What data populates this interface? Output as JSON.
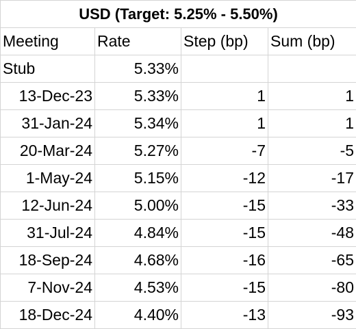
{
  "sheet": {
    "title": "USD (Target: 5.25% - 5.50%)",
    "headers": [
      "Meeting",
      "Rate",
      "Step (bp)",
      "Sum (bp)"
    ],
    "rows": [
      {
        "meeting": "Stub",
        "rate": "5.33%",
        "step": "",
        "sum": ""
      },
      {
        "meeting": "13-Dec-23",
        "rate": "5.33%",
        "step": "1",
        "sum": "1"
      },
      {
        "meeting": "31-Jan-24",
        "rate": "5.34%",
        "step": "1",
        "sum": "1"
      },
      {
        "meeting": "20-Mar-24",
        "rate": "5.27%",
        "step": "-7",
        "sum": "-5"
      },
      {
        "meeting": "1-May-24",
        "rate": "5.15%",
        "step": "-12",
        "sum": "-17"
      },
      {
        "meeting": "12-Jun-24",
        "rate": "5.00%",
        "step": "-15",
        "sum": "-33"
      },
      {
        "meeting": "31-Jul-24",
        "rate": "4.84%",
        "step": "-15",
        "sum": "-48"
      },
      {
        "meeting": "18-Sep-24",
        "rate": "4.68%",
        "step": "-16",
        "sum": "-65"
      },
      {
        "meeting": "7-Nov-24",
        "rate": "4.53%",
        "step": "-15",
        "sum": "-80"
      },
      {
        "meeting": "18-Dec-24",
        "rate": "4.40%",
        "step": "-13",
        "sum": "-93"
      }
    ]
  }
}
